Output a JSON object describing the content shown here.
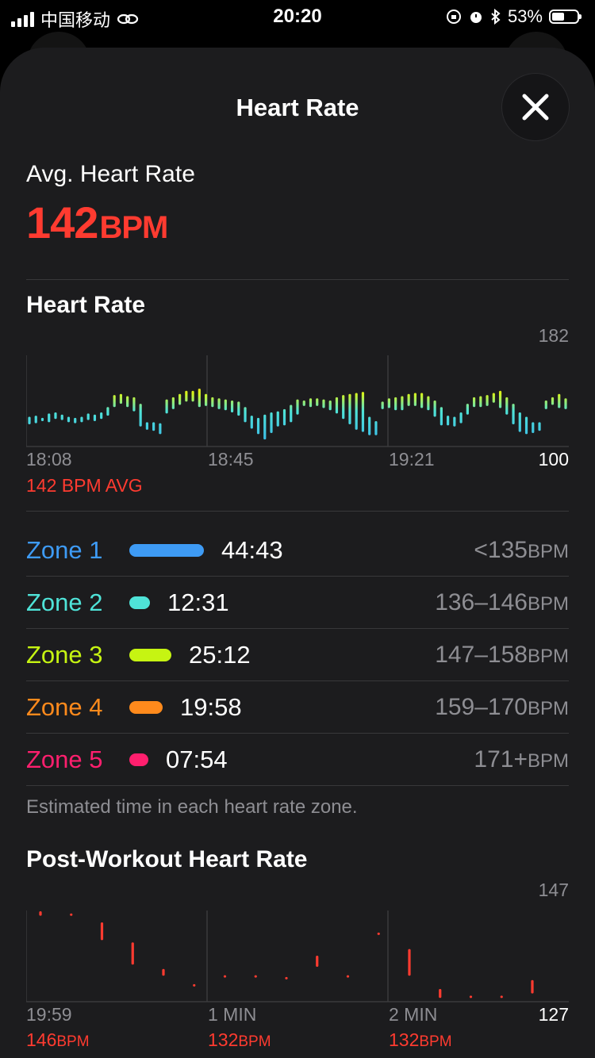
{
  "status": {
    "carrier": "中国移动",
    "time": "20:20",
    "battery": "53%"
  },
  "sheet": {
    "title": "Heart Rate"
  },
  "summary": {
    "label": "Avg. Heart Rate",
    "value": "142",
    "unit": "BPM"
  },
  "hr_chart": {
    "title": "Heart Rate",
    "ymax": "182",
    "ymin": "100",
    "xlabels": [
      "18:08",
      "18:45",
      "19:21"
    ],
    "avg_text": "142 BPM AVG"
  },
  "zones": [
    {
      "name": "Zone 1",
      "time": "44:43",
      "range": "<135",
      "unit": "BPM",
      "color": "#3e9bf5",
      "fraction": 1.0
    },
    {
      "name": "Zone 2",
      "time": "12:31",
      "range": "136–146",
      "unit": "BPM",
      "color": "#4fe3d8",
      "fraction": 0.28
    },
    {
      "name": "Zone 3",
      "time": "25:12",
      "range": "147–158",
      "unit": "BPM",
      "color": "#c6f412",
      "fraction": 0.56
    },
    {
      "name": "Zone 4",
      "time": "19:58",
      "range": "159–170",
      "unit": "BPM",
      "color": "#ff8a1c",
      "fraction": 0.45
    },
    {
      "name": "Zone 5",
      "time": "07:54",
      "range": "171+",
      "unit": "BPM",
      "color": "#ff1f6e",
      "fraction": 0.18
    }
  ],
  "zone_caption": "Estimated time in each heart rate zone.",
  "post": {
    "title": "Post-Workout Heart Rate",
    "ymax": "147",
    "ymin": "127",
    "xlabels": [
      "19:59",
      "1 MIN",
      "2 MIN"
    ],
    "bpm": [
      {
        "value": "146",
        "unit": "BPM"
      },
      {
        "value": "132",
        "unit": "BPM"
      },
      {
        "value": "132",
        "unit": "BPM"
      }
    ]
  },
  "chart_data": [
    {
      "type": "bar",
      "title": "Heart Rate",
      "ylim": [
        100,
        182
      ],
      "x_ticks": [
        "18:08",
        "18:45",
        "19:21"
      ],
      "annotation": "142 BPM AVG",
      "lows": [
        119,
        120,
        122,
        121,
        124,
        123,
        121,
        120,
        121,
        123,
        122,
        124,
        127,
        135,
        138,
        135,
        131,
        117,
        114,
        113,
        110,
        129,
        133,
        137,
        140,
        140,
        135,
        136,
        135,
        133,
        132,
        130,
        127,
        121,
        115,
        110,
        105,
        111,
        117,
        118,
        121,
        128,
        136,
        135,
        136,
        134,
        132,
        129,
        124,
        119,
        114,
        112,
        109,
        109,
        133,
        134,
        132,
        132,
        136,
        136,
        134,
        132,
        126,
        118,
        118,
        117,
        120,
        128,
        135,
        135,
        136,
        139,
        134,
        128,
        119,
        112,
        110,
        111,
        113,
        133,
        137,
        134,
        133
      ],
      "highs": [
        126,
        127,
        125,
        129,
        130,
        128,
        126,
        125,
        126,
        129,
        128,
        130,
        135,
        146,
        147,
        145,
        144,
        138,
        121,
        121,
        120,
        142,
        144,
        147,
        150,
        150,
        152,
        147,
        144,
        143,
        142,
        141,
        140,
        135,
        127,
        125,
        128,
        130,
        131,
        133,
        137,
        142,
        141,
        143,
        143,
        142,
        141,
        144,
        146,
        147,
        148,
        149,
        126,
        122,
        140,
        143,
        144,
        145,
        147,
        148,
        148,
        145,
        141,
        135,
        127,
        126,
        130,
        138,
        144,
        145,
        146,
        148,
        150,
        144,
        138,
        130,
        126,
        121,
        121,
        141,
        144,
        147,
        143
      ]
    },
    {
      "type": "scatter",
      "title": "Post-Workout Heart Rate",
      "ylim": [
        127,
        147
      ],
      "x_ticks": [
        "19:59",
        "1 MIN",
        "2 MIN"
      ],
      "points": [
        {
          "lo": 146,
          "hi": 147
        },
        {
          "lo": 146.2,
          "hi": 146.5
        },
        {
          "lo": 140.5,
          "hi": 144.5
        },
        {
          "lo": 135,
          "hi": 140
        },
        {
          "lo": 132.5,
          "hi": 134
        },
        {
          "lo": 130.2,
          "hi": 130.6
        },
        {
          "lo": 132.2,
          "hi": 132.6
        },
        {
          "lo": 132.2,
          "hi": 132.6
        },
        {
          "lo": 131.8,
          "hi": 132.2
        },
        {
          "lo": 134.5,
          "hi": 137
        },
        {
          "lo": 132.2,
          "hi": 132.6
        },
        {
          "lo": 141.8,
          "hi": 142.2
        },
        {
          "lo": 132.5,
          "hi": 138.5
        },
        {
          "lo": 127.5,
          "hi": 129.5
        },
        {
          "lo": 127.6,
          "hi": 128
        },
        {
          "lo": 127.6,
          "hi": 128
        },
        {
          "lo": 128.5,
          "hi": 131.5
        }
      ]
    }
  ]
}
